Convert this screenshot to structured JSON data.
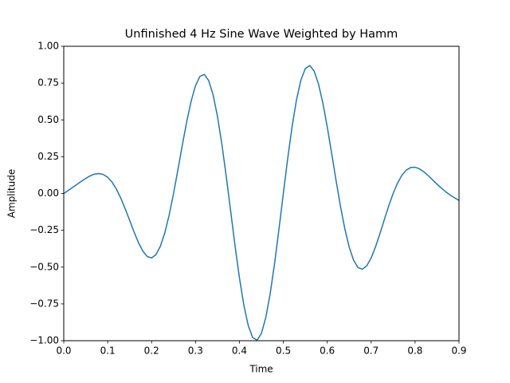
{
  "chart_data": {
    "type": "line",
    "title": "Unfinished 4 Hz Sine Wave Weighted by Hamm",
    "x_label": "Time",
    "y_label": "Amplitude",
    "x": [
      0,
      0.01,
      0.02,
      0.03,
      0.04,
      0.05,
      0.06,
      0.07,
      0.08,
      0.09,
      0.1,
      0.11,
      0.12,
      0.13,
      0.14,
      0.15,
      0.16,
      0.17,
      0.18,
      0.19,
      0.2,
      0.21,
      0.22,
      0.23,
      0.24,
      0.25,
      0.26,
      0.27,
      0.28,
      0.29,
      0.3,
      0.31,
      0.32,
      0.33,
      0.34,
      0.35,
      0.36,
      0.37,
      0.38,
      0.39,
      0.4,
      0.41,
      0.42,
      0.43,
      0.44,
      0.45,
      0.46,
      0.47,
      0.48,
      0.49,
      0.5,
      0.51,
      0.52,
      0.53,
      0.54,
      0.55,
      0.56,
      0.57,
      0.58,
      0.59,
      0.6,
      0.61,
      0.62,
      0.63,
      0.64,
      0.65,
      0.66,
      0.67,
      0.68,
      0.69,
      0.7,
      0.71,
      0.72,
      0.73,
      0.74,
      0.75,
      0.76,
      0.77,
      0.78,
      0.79,
      0.8,
      0.81,
      0.82,
      0.83,
      0.84,
      0.85,
      0.86,
      0.87,
      0.88,
      0.89,
      0.9
    ],
    "series": [
      {
        "color": "#1f77b4",
        "values": [
          0,
          0.0202,
          0.0407,
          0.0617,
          0.0826,
          0.1024,
          0.1196,
          0.1315,
          0.1356,
          0.1294,
          0.1103,
          0.077,
          0.0291,
          -0.0322,
          -0.1041,
          -0.1822,
          -0.2607,
          -0.3327,
          -0.3909,
          -0.4278,
          -0.4376,
          -0.4153,
          -0.3586,
          -0.2679,
          -0.1463,
          0,
          0.162,
          0.3286,
          0.4876,
          0.6262,
          0.7323,
          0.7956,
          0.8086,
          0.7671,
          0.671,
          0.5246,
          0.3357,
          0.1165,
          -0.1185,
          -0.3535,
          -0.5715,
          -0.7568,
          -0.8957,
          -0.9779,
          -0.9969,
          -0.9511,
          -0.8434,
          -0.6814,
          -0.4769,
          -0.2443,
          0,
          0.2388,
          0.4558,
          0.6367,
          0.7701,
          0.8488,
          0.8692,
          0.8328,
          0.7448,
          0.6142,
          0.4526,
          0.273,
          0.0893,
          -0.0855,
          -0.2397,
          -0.3644,
          -0.4531,
          -0.5032,
          -0.5146,
          -0.4909,
          -0.4376,
          -0.362,
          -0.2724,
          -0.1772,
          -0.0841,
          0,
          0.0703,
          0.1237,
          0.1589,
          0.1765,
          0.1784,
          0.1676,
          0.1472,
          0.1212,
          0.0923,
          0.0633,
          0.036,
          0.0113,
          -0.0106,
          -0.0299,
          -0.047
        ]
      }
    ],
    "xlim": [
      0,
      0.9
    ],
    "xticks": [
      {
        "value": 0,
        "label": "0.0"
      },
      0.1,
      0.2,
      0.3,
      0.4,
      0.5,
      0.6,
      0.7,
      0.8,
      0.9
    ],
    "ylim": [
      -1,
      1
    ],
    "yticks": [
      {
        "value": -1,
        "label": "−1.00"
      },
      {
        "value": -0.75,
        "label": "−0.75"
      },
      {
        "value": -0.5,
        "label": "−0.50"
      },
      {
        "value": -0.25,
        "label": "−0.25"
      },
      {
        "value": 0,
        "label": "0.00"
      },
      {
        "value": 0.25,
        "label": "0.25"
      },
      {
        "value": 0.5,
        "label": "0.50"
      },
      {
        "value": 0.75,
        "label": "0.75"
      },
      {
        "value": 1,
        "label": "1.00"
      }
    ]
  }
}
